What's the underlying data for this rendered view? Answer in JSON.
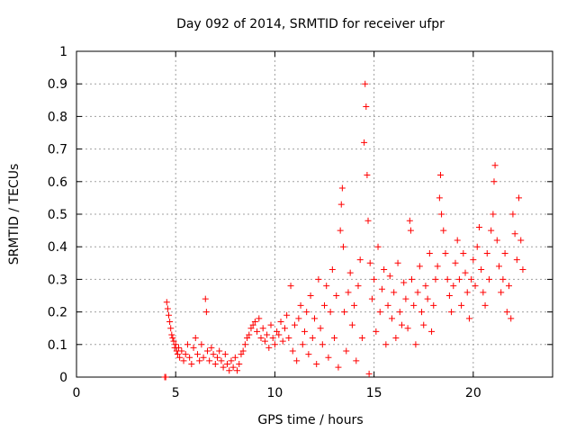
{
  "chart_data": {
    "type": "scatter",
    "title": "Day 092 of 2014, SRMTID for receiver ufpr",
    "xlabel": "GPS time / hours",
    "ylabel": "SRMTID / TECUs",
    "xlim": [
      0,
      24
    ],
    "ylim": [
      0,
      1
    ],
    "xticks": [
      0,
      5,
      10,
      15,
      20
    ],
    "yticks": [
      0,
      0.1,
      0.2,
      0.3,
      0.4,
      0.5,
      0.6,
      0.7,
      0.8,
      0.9,
      1
    ],
    "xtick_labels": [
      "0",
      "5",
      "10",
      "15",
      "20"
    ],
    "ytick_labels": [
      "0",
      "0.1",
      "0.2",
      "0.3",
      "0.4",
      "0.5",
      "0.6",
      "0.7",
      "0.8",
      "0.9",
      "1"
    ],
    "grid": true,
    "marker": "plus",
    "color": "#ff0000",
    "series": [
      {
        "name": "SRMTID",
        "points": [
          [
            4.45,
            0.0
          ],
          [
            4.5,
            0.0
          ],
          [
            4.55,
            0.23
          ],
          [
            4.6,
            0.21
          ],
          [
            4.65,
            0.19
          ],
          [
            4.7,
            0.17
          ],
          [
            4.75,
            0.15
          ],
          [
            4.8,
            0.13
          ],
          [
            4.85,
            0.12
          ],
          [
            4.9,
            0.11
          ],
          [
            4.95,
            0.09
          ],
          [
            5.0,
            0.1
          ],
          [
            5.05,
            0.08
          ],
          [
            5.1,
            0.07
          ],
          [
            5.15,
            0.09
          ],
          [
            5.2,
            0.06
          ],
          [
            5.3,
            0.08
          ],
          [
            5.4,
            0.05
          ],
          [
            5.5,
            0.07
          ],
          [
            5.6,
            0.1
          ],
          [
            5.7,
            0.06
          ],
          [
            5.8,
            0.04
          ],
          [
            5.9,
            0.09
          ],
          [
            6.0,
            0.12
          ],
          [
            6.1,
            0.07
          ],
          [
            6.2,
            0.05
          ],
          [
            6.3,
            0.1
          ],
          [
            6.4,
            0.06
          ],
          [
            6.5,
            0.24
          ],
          [
            6.55,
            0.2
          ],
          [
            6.6,
            0.08
          ],
          [
            6.7,
            0.05
          ],
          [
            6.8,
            0.09
          ],
          [
            6.9,
            0.07
          ],
          [
            7.0,
            0.04
          ],
          [
            7.1,
            0.06
          ],
          [
            7.2,
            0.08
          ],
          [
            7.3,
            0.05
          ],
          [
            7.4,
            0.03
          ],
          [
            7.5,
            0.07
          ],
          [
            7.6,
            0.04
          ],
          [
            7.7,
            0.02
          ],
          [
            7.8,
            0.05
          ],
          [
            7.9,
            0.03
          ],
          [
            8.0,
            0.06
          ],
          [
            8.1,
            0.02
          ],
          [
            8.2,
            0.04
          ],
          [
            8.3,
            0.07
          ],
          [
            8.4,
            0.08
          ],
          [
            8.5,
            0.1
          ],
          [
            8.6,
            0.12
          ],
          [
            8.7,
            0.13
          ],
          [
            8.8,
            0.15
          ],
          [
            8.9,
            0.16
          ],
          [
            9.0,
            0.17
          ],
          [
            9.1,
            0.14
          ],
          [
            9.2,
            0.18
          ],
          [
            9.3,
            0.12
          ],
          [
            9.4,
            0.15
          ],
          [
            9.5,
            0.11
          ],
          [
            9.6,
            0.13
          ],
          [
            9.7,
            0.09
          ],
          [
            9.8,
            0.16
          ],
          [
            9.9,
            0.12
          ],
          [
            10.0,
            0.1
          ],
          [
            10.1,
            0.14
          ],
          [
            10.2,
            0.13
          ],
          [
            10.3,
            0.17
          ],
          [
            10.4,
            0.11
          ],
          [
            10.5,
            0.15
          ],
          [
            10.6,
            0.19
          ],
          [
            10.7,
            0.12
          ],
          [
            10.8,
            0.28
          ],
          [
            10.9,
            0.08
          ],
          [
            11.0,
            0.16
          ],
          [
            11.1,
            0.05
          ],
          [
            11.2,
            0.18
          ],
          [
            11.3,
            0.22
          ],
          [
            11.4,
            0.1
          ],
          [
            11.5,
            0.14
          ],
          [
            11.6,
            0.2
          ],
          [
            11.7,
            0.07
          ],
          [
            11.8,
            0.25
          ],
          [
            11.9,
            0.12
          ],
          [
            12.0,
            0.18
          ],
          [
            12.1,
            0.04
          ],
          [
            12.2,
            0.3
          ],
          [
            12.3,
            0.15
          ],
          [
            12.4,
            0.1
          ],
          [
            12.5,
            0.22
          ],
          [
            12.6,
            0.28
          ],
          [
            12.7,
            0.06
          ],
          [
            12.8,
            0.2
          ],
          [
            12.9,
            0.33
          ],
          [
            13.0,
            0.12
          ],
          [
            13.1,
            0.25
          ],
          [
            13.2,
            0.03
          ],
          [
            13.3,
            0.45
          ],
          [
            13.35,
            0.53
          ],
          [
            13.4,
            0.58
          ],
          [
            13.45,
            0.4
          ],
          [
            13.5,
            0.2
          ],
          [
            13.6,
            0.08
          ],
          [
            13.7,
            0.26
          ],
          [
            13.8,
            0.32
          ],
          [
            13.9,
            0.16
          ],
          [
            14.0,
            0.22
          ],
          [
            14.1,
            0.05
          ],
          [
            14.2,
            0.28
          ],
          [
            14.3,
            0.36
          ],
          [
            14.4,
            0.12
          ],
          [
            14.5,
            0.72
          ],
          [
            14.55,
            0.9
          ],
          [
            14.6,
            0.83
          ],
          [
            14.65,
            0.62
          ],
          [
            14.7,
            0.48
          ],
          [
            14.75,
            0.01
          ],
          [
            14.8,
            0.35
          ],
          [
            14.9,
            0.24
          ],
          [
            15.0,
            0.3
          ],
          [
            15.1,
            0.14
          ],
          [
            15.2,
            0.4
          ],
          [
            15.3,
            0.2
          ],
          [
            15.4,
            0.27
          ],
          [
            15.5,
            0.33
          ],
          [
            15.6,
            0.1
          ],
          [
            15.7,
            0.22
          ],
          [
            15.8,
            0.31
          ],
          [
            15.9,
            0.18
          ],
          [
            16.0,
            0.26
          ],
          [
            16.1,
            0.12
          ],
          [
            16.2,
            0.35
          ],
          [
            16.3,
            0.2
          ],
          [
            16.4,
            0.16
          ],
          [
            16.5,
            0.29
          ],
          [
            16.6,
            0.24
          ],
          [
            16.7,
            0.15
          ],
          [
            16.8,
            0.48
          ],
          [
            16.85,
            0.45
          ],
          [
            16.9,
            0.3
          ],
          [
            17.0,
            0.22
          ],
          [
            17.1,
            0.1
          ],
          [
            17.2,
            0.26
          ],
          [
            17.3,
            0.34
          ],
          [
            17.4,
            0.2
          ],
          [
            17.5,
            0.16
          ],
          [
            17.6,
            0.28
          ],
          [
            17.7,
            0.24
          ],
          [
            17.8,
            0.38
          ],
          [
            17.9,
            0.14
          ],
          [
            18.0,
            0.22
          ],
          [
            18.1,
            0.3
          ],
          [
            18.2,
            0.34
          ],
          [
            18.3,
            0.55
          ],
          [
            18.35,
            0.62
          ],
          [
            18.4,
            0.5
          ],
          [
            18.5,
            0.45
          ],
          [
            18.6,
            0.38
          ],
          [
            18.7,
            0.3
          ],
          [
            18.8,
            0.25
          ],
          [
            18.9,
            0.2
          ],
          [
            19.0,
            0.28
          ],
          [
            19.1,
            0.35
          ],
          [
            19.2,
            0.42
          ],
          [
            19.3,
            0.3
          ],
          [
            19.4,
            0.22
          ],
          [
            19.5,
            0.38
          ],
          [
            19.6,
            0.32
          ],
          [
            19.7,
            0.26
          ],
          [
            19.8,
            0.18
          ],
          [
            19.9,
            0.3
          ],
          [
            20.0,
            0.36
          ],
          [
            20.1,
            0.28
          ],
          [
            20.2,
            0.4
          ],
          [
            20.3,
            0.46
          ],
          [
            20.4,
            0.33
          ],
          [
            20.5,
            0.26
          ],
          [
            20.6,
            0.22
          ],
          [
            20.7,
            0.38
          ],
          [
            20.8,
            0.3
          ],
          [
            20.9,
            0.45
          ],
          [
            21.0,
            0.5
          ],
          [
            21.05,
            0.6
          ],
          [
            21.1,
            0.65
          ],
          [
            21.2,
            0.42
          ],
          [
            21.3,
            0.34
          ],
          [
            21.4,
            0.26
          ],
          [
            21.5,
            0.3
          ],
          [
            21.6,
            0.38
          ],
          [
            21.7,
            0.2
          ],
          [
            21.8,
            0.28
          ],
          [
            21.9,
            0.18
          ],
          [
            22.0,
            0.5
          ],
          [
            22.1,
            0.44
          ],
          [
            22.2,
            0.36
          ],
          [
            22.3,
            0.55
          ],
          [
            22.4,
            0.42
          ],
          [
            22.5,
            0.33
          ]
        ]
      }
    ]
  }
}
